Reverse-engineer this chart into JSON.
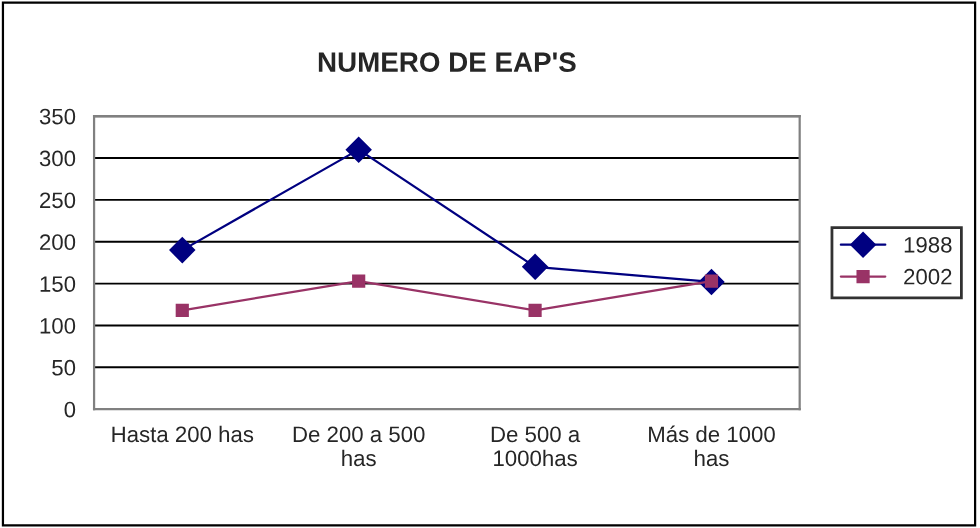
{
  "chart_data": {
    "type": "line",
    "title": "NUMERO DE EAP'S",
    "categories": [
      "Hasta 200 has",
      "De 200 a 500\nhas",
      "De 500 a\n1000has",
      "Más de 1000\nhas"
    ],
    "series": [
      {
        "name": "1988",
        "color": "#000080",
        "marker": "diamond",
        "values": [
          190,
          310,
          170,
          152
        ]
      },
      {
        "name": "2002",
        "color": "#993366",
        "marker": "square",
        "values": [
          118,
          153,
          118,
          153
        ]
      }
    ],
    "ylim": [
      0,
      350
    ],
    "yticks": [
      0,
      50,
      100,
      150,
      200,
      250,
      300,
      350
    ],
    "grid": "y",
    "legend": "right"
  }
}
